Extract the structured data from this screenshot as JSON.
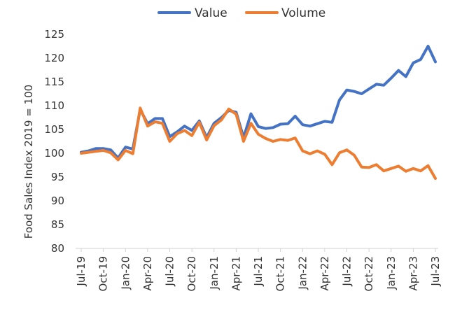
{
  "chart_data": {
    "type": "line",
    "title": "",
    "xlabel": "",
    "ylabel": "Food Sales Index 2019 = 100",
    "ylim": [
      80,
      125
    ],
    "yticks": [
      80,
      85,
      90,
      95,
      100,
      105,
      110,
      115,
      120,
      125
    ],
    "grid": false,
    "legend_position": "top-center",
    "x": [
      "Jul-19",
      "Aug-19",
      "Sep-19",
      "Oct-19",
      "Nov-19",
      "Dec-19",
      "Jan-20",
      "Feb-20",
      "Mar-20",
      "Apr-20",
      "May-20",
      "Jun-20",
      "Jul-20",
      "Aug-20",
      "Sep-20",
      "Oct-20",
      "Nov-20",
      "Dec-20",
      "Jan-21",
      "Feb-21",
      "Mar-21",
      "Apr-21",
      "May-21",
      "Jun-21",
      "Jul-21",
      "Aug-21",
      "Sep-21",
      "Oct-21",
      "Nov-21",
      "Dec-21",
      "Jan-22",
      "Feb-22",
      "Mar-22",
      "Apr-22",
      "May-22",
      "Jun-22",
      "Jul-22",
      "Aug-22",
      "Sep-22",
      "Oct-22",
      "Nov-22",
      "Dec-22",
      "Jan-23",
      "Feb-23",
      "Mar-23",
      "Apr-23",
      "May-23",
      "Jun-23",
      "Jul-23"
    ],
    "x_tick_labels": [
      "Jul-19",
      "Oct-19",
      "Jan-20",
      "Apr-20",
      "Jul-20",
      "Oct-20",
      "Jan-21",
      "Apr-21",
      "Jul-21",
      "Oct-21",
      "Jan-22",
      "Apr-22",
      "Jul-22",
      "Oct-22",
      "Jan-23",
      "Apr-23",
      "Jul-23"
    ],
    "series": [
      {
        "name": "Value",
        "color": "#4472C4",
        "values": [
          100.2,
          100.5,
          101.0,
          101.0,
          100.7,
          99.0,
          101.3,
          100.9,
          109.2,
          106.2,
          107.3,
          107.3,
          103.5,
          104.5,
          105.7,
          104.8,
          106.8,
          103.3,
          106.3,
          107.5,
          109.0,
          108.6,
          103.3,
          108.3,
          105.6,
          105.2,
          105.4,
          106.1,
          106.2,
          107.8,
          106.0,
          105.7,
          106.2,
          106.7,
          106.5,
          111.2,
          113.3,
          113.0,
          112.5,
          113.5,
          114.5,
          114.3,
          115.8,
          117.4,
          116.1,
          119.0,
          119.7,
          122.5,
          119.2
        ]
      },
      {
        "name": "Volume",
        "color": "#ED7D31",
        "values": [
          100.0,
          100.2,
          100.4,
          100.6,
          100.1,
          98.6,
          100.6,
          99.9,
          109.5,
          105.7,
          106.6,
          106.3,
          102.5,
          104.1,
          104.8,
          103.7,
          106.5,
          102.8,
          105.8,
          107.0,
          109.3,
          108.2,
          102.5,
          106.3,
          104.0,
          103.1,
          102.5,
          102.9,
          102.7,
          103.2,
          100.5,
          99.9,
          100.5,
          99.8,
          97.6,
          100.1,
          100.7,
          99.6,
          97.1,
          97.0,
          97.6,
          96.3,
          96.8,
          97.3,
          96.2,
          96.8,
          96.3,
          97.4,
          94.7
        ]
      }
    ]
  }
}
